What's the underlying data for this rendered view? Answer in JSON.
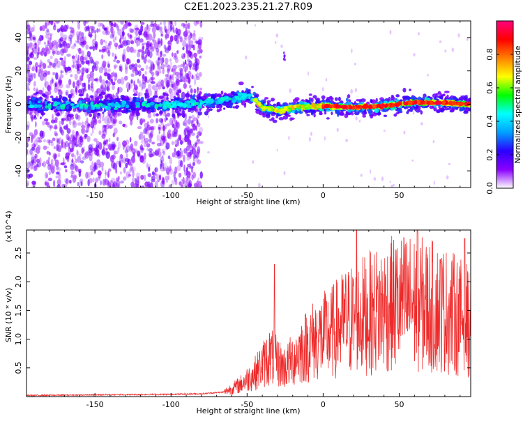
{
  "figure": {
    "title": "C2E1.2023.235.21.27.R09"
  },
  "chart_data": [
    {
      "type": "heatmap",
      "title": "C2E1.2023.235.21.27.R09",
      "xlabel": "Height of straight line (km)",
      "ylabel": "Frequency (Hz)",
      "xlim": [
        -195,
        97
      ],
      "ylim": [
        -50,
        50
      ],
      "xticks": [
        -150,
        -100,
        -50,
        0,
        50
      ],
      "yticks": [
        -40,
        -20,
        0,
        20,
        40
      ],
      "colorbar": {
        "label": "Normalized spectral amplitude",
        "range": [
          0.0,
          1.0
        ],
        "ticks": [
          0.0,
          0.2,
          0.4,
          0.6,
          0.8
        ],
        "colormap": [
          "#ffffff",
          "#8b00ff",
          "#2a00ff",
          "#00a0ff",
          "#00ffff",
          "#00ff00",
          "#ffff00",
          "#ff8000",
          "#ff0000",
          "#ff007f"
        ]
      },
      "ridge": {
        "description_points": [
          {
            "x": -195,
            "y": 0
          },
          {
            "x": -150,
            "y": -1
          },
          {
            "x": -100,
            "y": 0
          },
          {
            "x": -80,
            "y": 1
          },
          {
            "x": -60,
            "y": 3
          },
          {
            "x": -50,
            "y": 5
          },
          {
            "x": -45,
            "y": 3
          },
          {
            "x": -40,
            "y": -2
          },
          {
            "x": -30,
            "y": -4
          },
          {
            "x": -20,
            "y": -2
          },
          {
            "x": 0,
            "y": -1
          },
          {
            "x": 20,
            "y": -2
          },
          {
            "x": 40,
            "y": -1
          },
          {
            "x": 60,
            "y": 1
          },
          {
            "x": 75,
            "y": 1
          },
          {
            "x": 97,
            "y": 0
          }
        ],
        "peak_amplitude_region": [
          0,
          97
        ]
      }
    },
    {
      "type": "line",
      "xlabel": "Height of straight line (km)",
      "ylabel": "SNR (10 * v/v)",
      "y_multiplier": "(x10^4)",
      "xlim": [
        -195,
        97
      ],
      "ylim": [
        0,
        2.9
      ],
      "xticks": [
        -150,
        -100,
        -50,
        0,
        50
      ],
      "yticks": [
        0.5,
        1.0,
        1.5,
        2.0,
        2.5
      ],
      "color": "#ee2a2a",
      "series": [
        {
          "values_envelope": [
            {
              "x": -195,
              "y": 0.02
            },
            {
              "x": -150,
              "y": 0.03
            },
            {
              "x": -100,
              "y": 0.04
            },
            {
              "x": -80,
              "y": 0.05
            },
            {
              "x": -65,
              "y": 0.08
            },
            {
              "x": -55,
              "y": 0.2
            },
            {
              "x": -45,
              "y": 0.4
            },
            {
              "x": -35,
              "y": 0.7
            },
            {
              "x": -25,
              "y": 0.5
            },
            {
              "x": -15,
              "y": 0.8
            },
            {
              "x": -5,
              "y": 1.0
            },
            {
              "x": 5,
              "y": 1.1
            },
            {
              "x": 15,
              "y": 1.3
            },
            {
              "x": 25,
              "y": 1.4
            },
            {
              "x": 35,
              "y": 1.5
            },
            {
              "x": 45,
              "y": 1.6
            },
            {
              "x": 55,
              "y": 1.65
            },
            {
              "x": 65,
              "y": 1.6
            },
            {
              "x": 75,
              "y": 1.55
            },
            {
              "x": 85,
              "y": 1.45
            },
            {
              "x": 97,
              "y": 1.3
            }
          ],
          "notable_peaks": [
            {
              "x": -32,
              "y": 2.3
            },
            {
              "x": 22,
              "y": 2.95
            },
            {
              "x": 62,
              "y": 2.9
            },
            {
              "x": 93,
              "y": 2.75
            }
          ]
        }
      ]
    }
  ]
}
